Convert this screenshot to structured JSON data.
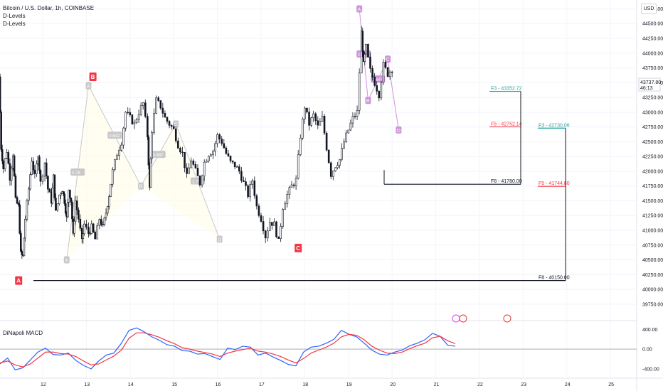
{
  "header": {
    "symbol_title": "Bitcoin / U.S. Dollar, 1h, COINBASE",
    "indicators": [
      "D-Levels",
      "D-Levels"
    ],
    "currency": "USD"
  },
  "macd_panel": {
    "title": "DiNapoli MACD",
    "axis_labels": [
      "400.00",
      "0.00",
      "-400.00"
    ]
  },
  "price_tag": {
    "value": "43737.80",
    "countdown": "46:13"
  },
  "chart_data": {
    "type": "candlestick",
    "symbol": "Bitcoin / U.S. Dollar",
    "timeframe": "1h",
    "ylim": [
      39700,
      44900
    ],
    "y_ticks": [
      "44750.00",
      "44500.00",
      "44250.00",
      "44000.00",
      "43750.00",
      "43500.00",
      "43250.00",
      "43000.00",
      "42750.00",
      "42500.00",
      "42250.00",
      "42000.00",
      "41750.00",
      "41500.00",
      "41250.00",
      "41000.00",
      "40750.00",
      "40500.00",
      "40250.00",
      "40000.00",
      "39750.00"
    ],
    "x_ticks": [
      "12",
      "13",
      "14",
      "15",
      "16",
      "17",
      "18",
      "19",
      "20",
      "21",
      "22",
      "23",
      "24",
      "25"
    ],
    "price_path": [
      [
        11.0,
        43600
      ],
      [
        11.05,
        42400
      ],
      [
        11.1,
        42050
      ],
      [
        11.18,
        42350
      ],
      [
        11.25,
        41900
      ],
      [
        11.32,
        42300
      ],
      [
        11.38,
        41500
      ],
      [
        11.45,
        41400
      ],
      [
        11.5,
        40600
      ],
      [
        11.55,
        40550
      ],
      [
        11.6,
        41200
      ],
      [
        11.68,
        41700
      ],
      [
        11.75,
        42200
      ],
      [
        11.82,
        41900
      ],
      [
        11.9,
        42300
      ],
      [
        11.95,
        41800
      ],
      [
        12.05,
        42150
      ],
      [
        12.12,
        41700
      ],
      [
        12.2,
        41500
      ],
      [
        12.25,
        41900
      ],
      [
        12.3,
        41300
      ],
      [
        12.38,
        41600
      ],
      [
        12.45,
        41700
      ],
      [
        12.5,
        41500
      ],
      [
        12.55,
        41200
      ],
      [
        12.6,
        41700
      ],
      [
        12.65,
        41500
      ],
      [
        12.7,
        40900
      ],
      [
        12.75,
        41500
      ],
      [
        12.82,
        41200
      ],
      [
        12.9,
        40800
      ],
      [
        12.95,
        41100
      ],
      [
        13.05,
        40950
      ],
      [
        13.12,
        41050
      ],
      [
        13.2,
        40850
      ],
      [
        13.3,
        41200
      ],
      [
        13.38,
        41050
      ],
      [
        13.45,
        41300
      ],
      [
        13.52,
        41600
      ],
      [
        13.6,
        42000
      ],
      [
        13.7,
        42300
      ],
      [
        13.8,
        42500
      ],
      [
        13.9,
        43000
      ],
      [
        14.0,
        42900
      ],
      [
        14.1,
        42800
      ],
      [
        14.2,
        43000
      ],
      [
        14.3,
        43150
      ],
      [
        14.4,
        42600
      ],
      [
        14.45,
        41700
      ],
      [
        14.5,
        42700
      ],
      [
        14.6,
        43200
      ],
      [
        14.7,
        43100
      ],
      [
        14.8,
        42900
      ],
      [
        14.9,
        42800
      ],
      [
        15.0,
        42700
      ],
      [
        15.1,
        42450
      ],
      [
        15.2,
        42300
      ],
      [
        15.3,
        41900
      ],
      [
        15.4,
        42200
      ],
      [
        15.5,
        42000
      ],
      [
        15.6,
        41800
      ],
      [
        15.7,
        42150
      ],
      [
        15.8,
        42300
      ],
      [
        15.9,
        42350
      ],
      [
        16.0,
        42600
      ],
      [
        16.1,
        42500
      ],
      [
        16.2,
        42300
      ],
      [
        16.3,
        42150
      ],
      [
        16.4,
        42100
      ],
      [
        16.5,
        42000
      ],
      [
        16.6,
        41800
      ],
      [
        16.7,
        41600
      ],
      [
        16.8,
        41850
      ],
      [
        16.9,
        41400
      ],
      [
        17.0,
        41200
      ],
      [
        17.1,
        40900
      ],
      [
        17.2,
        41150
      ],
      [
        17.3,
        41100
      ],
      [
        17.4,
        40800
      ],
      [
        17.5,
        41400
      ],
      [
        17.6,
        41600
      ],
      [
        17.7,
        41750
      ],
      [
        17.8,
        41850
      ],
      [
        17.9,
        42600
      ],
      [
        18.0,
        43100
      ],
      [
        18.1,
        42800
      ],
      [
        18.2,
        42950
      ],
      [
        18.3,
        42750
      ],
      [
        18.4,
        42900
      ],
      [
        18.5,
        42400
      ],
      [
        18.6,
        41950
      ],
      [
        18.7,
        42100
      ],
      [
        18.8,
        42200
      ],
      [
        18.9,
        42500
      ],
      [
        19.0,
        42700
      ],
      [
        19.1,
        42900
      ],
      [
        19.2,
        43000
      ],
      [
        19.3,
        44350
      ],
      [
        19.35,
        43800
      ],
      [
        19.4,
        44100
      ],
      [
        19.5,
        43700
      ],
      [
        19.6,
        43500
      ],
      [
        19.7,
        43300
      ],
      [
        19.8,
        43800
      ],
      [
        19.9,
        43650
      ],
      [
        20.0,
        43737.8
      ]
    ],
    "candle_series_note": "",
    "patterns": [
      {
        "name": "grey-abcd",
        "points": [
          {
            "label": "X",
            "x": 12.55,
            "y": 40500
          },
          {
            "label": "A",
            "x": 13.05,
            "y": 43450
          },
          {
            "label": "B",
            "x": 14.25,
            "y": 41750
          },
          {
            "label": "C",
            "x": 15.05,
            "y": 42800
          },
          {
            "label": "D",
            "x": 16.05,
            "y": 40850
          }
        ],
        "ratios": [
          "0.78",
          "0.632",
          "0.887",
          "1.772"
        ]
      },
      {
        "name": "purple-abcd",
        "points": [
          {
            "label": "A",
            "x": 19.25,
            "y": 44750
          },
          {
            "label": "B",
            "x": 19.45,
            "y": 43200
          },
          {
            "label": "C",
            "x": 19.9,
            "y": 43900
          },
          {
            "label": "D",
            "x": 20.15,
            "y": 42700
          }
        ],
        "ratios": [
          "0.639",
          "1.647"
        ]
      }
    ],
    "pivot_labels": [
      {
        "label": "A",
        "x": 11.45,
        "y": 40150,
        "color": "#f23645"
      },
      {
        "label": "B",
        "x": 13.15,
        "y": 43600,
        "color": "#f23645"
      },
      {
        "label": "C",
        "x": 17.85,
        "y": 40700,
        "color": "#f23645"
      }
    ],
    "levels": [
      {
        "label": "F3 - 43352.72",
        "value": 43352.72,
        "color": "#26a69a"
      },
      {
        "label": "F5 - 42752.14",
        "value": 42752.14,
        "color": "#f23645"
      },
      {
        "label": "F8 - 41780.00",
        "value": 41780.0,
        "color": "#131722"
      },
      {
        "label": "F3 - 42730.06",
        "value": 42730.06,
        "color": "#26a69a"
      },
      {
        "label": "F5 - 41744.80",
        "value": 41744.8,
        "color": "#f23645"
      },
      {
        "label": "F8 - 40150.00",
        "value": 40150.0,
        "color": "#131722"
      }
    ],
    "macd": {
      "ylim": [
        -560,
        520
      ],
      "fast": [
        -300,
        -180,
        -420,
        -380,
        -220,
        -60,
        20,
        -110,
        -120,
        -80,
        -230,
        -330,
        -400,
        -240,
        -120,
        -80,
        120,
        380,
        430,
        350,
        250,
        180,
        90,
        60,
        -30,
        -40,
        -100,
        -90,
        -150,
        -210,
        20,
        -10,
        60,
        40,
        -120,
        -80,
        -160,
        -230,
        -310,
        -340,
        -60,
        40,
        60,
        120,
        200,
        380,
        300,
        250,
        120,
        -20,
        -100,
        -120,
        -60,
        -20,
        70,
        120,
        190,
        320,
        260,
        80,
        60
      ],
      "slow": [
        -280,
        -240,
        -320,
        -360,
        -300,
        -180,
        -60,
        -60,
        -90,
        -100,
        -150,
        -240,
        -320,
        -300,
        -220,
        -140,
        -20,
        220,
        330,
        330,
        290,
        240,
        170,
        110,
        30,
        0,
        -40,
        -70,
        -100,
        -150,
        -80,
        -40,
        -10,
        20,
        -40,
        -60,
        -100,
        -150,
        -220,
        -280,
        -190,
        -80,
        -20,
        40,
        120,
        250,
        300,
        280,
        190,
        60,
        -20,
        -80,
        -90,
        -60,
        10,
        70,
        120,
        230,
        260,
        170,
        110
      ]
    }
  }
}
